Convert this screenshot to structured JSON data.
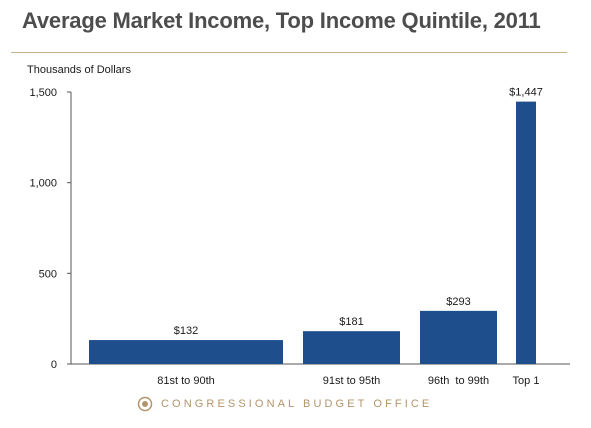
{
  "page": {
    "title": "Average Market Income, Top Income Quintile, 2011",
    "footer": "CONGRESSIONAL BUDGET OFFICE"
  },
  "colors": {
    "bar": "#1f4e8c",
    "axis": "#555555",
    "rule": "#c8b28d",
    "footer": "#b3946a"
  },
  "chart_data": {
    "type": "bar",
    "title": "Average Market Income, Top Income Quintile, 2011",
    "ylabel": "Thousands of Dollars",
    "xlabel": "",
    "categories": [
      "81st to 90th",
      "91st to 95th",
      "96th  to 99th",
      "Top 1"
    ],
    "values": [
      132,
      181,
      293,
      1447
    ],
    "value_labels": [
      "$132",
      "$181",
      "$293",
      "$1,447"
    ],
    "bar_width_weights": [
      10,
      5,
      4,
      1
    ],
    "ylim": [
      0,
      1500
    ],
    "yticks": [
      0,
      500,
      1000,
      1500
    ],
    "ytick_labels": [
      "0",
      "500",
      "1,000",
      "1,500"
    ],
    "grid": false,
    "legend": "none"
  }
}
